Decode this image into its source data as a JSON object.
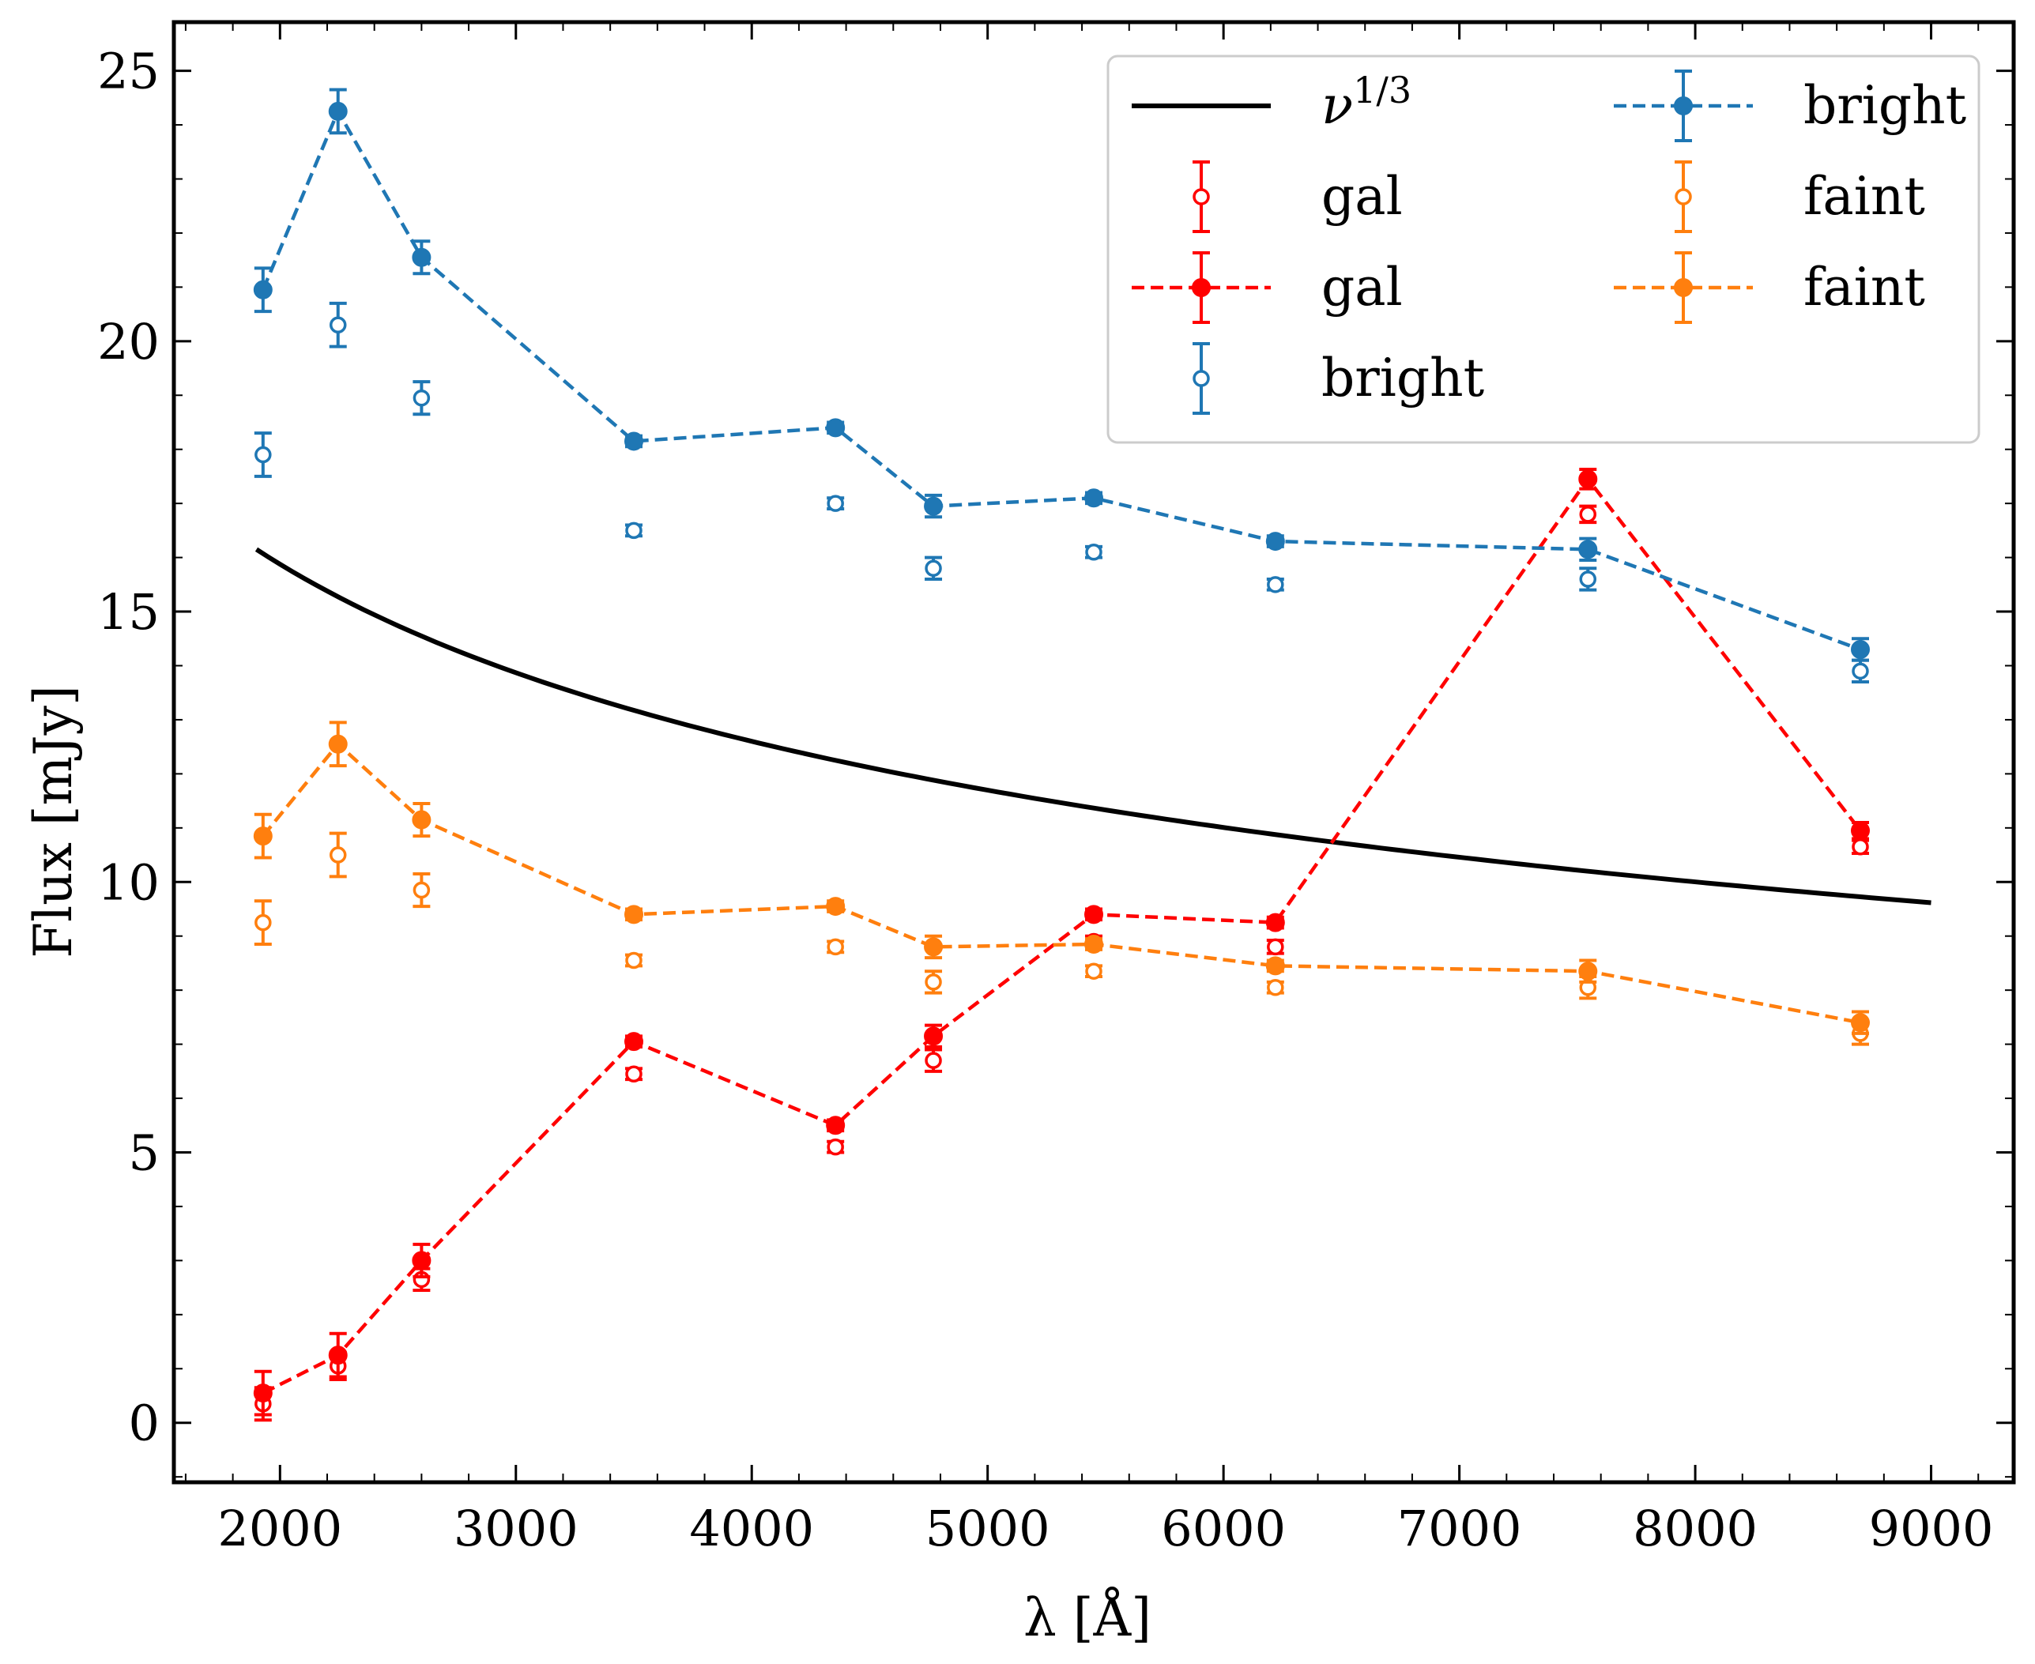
{
  "chart_data": {
    "type": "line",
    "title": "",
    "xlabel": "λ [Å]",
    "ylabel": "Flux [mJy]",
    "xlim": [
      1550,
      9350
    ],
    "ylim": [
      -1.1,
      25.9
    ],
    "xticks": [
      2000,
      3000,
      4000,
      5000,
      6000,
      7000,
      8000,
      9000
    ],
    "yticks": [
      0,
      5,
      10,
      15,
      20,
      25
    ],
    "x_minor_step": 200,
    "y_minor_step": 1,
    "legend_location": "top-right",
    "legend_columns": 2,
    "colors": {
      "gal": "#ff0000",
      "bright": "#1f77b4",
      "faint": "#ff7f0e",
      "model": "#000000"
    },
    "model_curve": {
      "name": "ν^1/3",
      "label_base": "ν",
      "label_exp": "1/3",
      "x_start": 1900,
      "x_end": 9000,
      "anchor_x": 1900,
      "anchor_y": 16.15,
      "exponent": -0.3333
    },
    "series": [
      {
        "name": "gal",
        "style": "open",
        "color_key": "gal",
        "x": [
          1928,
          2246,
          2600,
          3500,
          4355,
          4770,
          5450,
          6220,
          7545,
          8700
        ],
        "y": [
          0.35,
          1.05,
          2.65,
          6.45,
          5.1,
          6.7,
          8.9,
          8.8,
          16.8,
          10.65
        ],
        "yerr": [
          0.3,
          0.25,
          0.2,
          0.1,
          0.1,
          0.2,
          0.1,
          0.12,
          0.15,
          0.12
        ]
      },
      {
        "name": "gal",
        "style": "filled",
        "color_key": "gal",
        "x": [
          1928,
          2246,
          2600,
          3500,
          4355,
          4770,
          5450,
          6220,
          7545,
          8700
        ],
        "y": [
          0.55,
          1.25,
          3.0,
          7.05,
          5.5,
          7.15,
          9.4,
          9.25,
          17.45,
          10.95
        ],
        "yerr": [
          0.4,
          0.4,
          0.3,
          0.1,
          0.1,
          0.2,
          0.1,
          0.1,
          0.18,
          0.15
        ]
      },
      {
        "name": "bright",
        "style": "open",
        "color_key": "bright",
        "x": [
          1928,
          2246,
          2600,
          3500,
          4355,
          4770,
          5450,
          6220,
          7545,
          8700
        ],
        "y": [
          17.9,
          20.3,
          18.95,
          16.5,
          17.0,
          15.8,
          16.1,
          15.5,
          15.6,
          13.9
        ],
        "yerr": [
          0.4,
          0.4,
          0.3,
          0.1,
          0.1,
          0.2,
          0.1,
          0.1,
          0.2,
          0.2
        ]
      },
      {
        "name": "bright",
        "style": "filled",
        "color_key": "bright",
        "x": [
          1928,
          2246,
          2600,
          3500,
          4355,
          4770,
          5450,
          6220,
          7545,
          8700
        ],
        "y": [
          20.95,
          24.25,
          21.55,
          18.15,
          18.4,
          16.95,
          17.1,
          16.3,
          16.15,
          14.3
        ],
        "yerr": [
          0.4,
          0.4,
          0.3,
          0.1,
          0.1,
          0.2,
          0.1,
          0.1,
          0.2,
          0.2
        ]
      },
      {
        "name": "faint",
        "style": "open",
        "color_key": "faint",
        "x": [
          1928,
          2246,
          2600,
          3500,
          4355,
          4770,
          5450,
          6220,
          7545,
          8700
        ],
        "y": [
          9.25,
          10.5,
          9.85,
          8.55,
          8.8,
          8.15,
          8.35,
          8.05,
          8.05,
          7.2
        ],
        "yerr": [
          0.4,
          0.4,
          0.3,
          0.1,
          0.1,
          0.2,
          0.1,
          0.1,
          0.2,
          0.2
        ]
      },
      {
        "name": "faint",
        "style": "filled",
        "color_key": "faint",
        "x": [
          1928,
          2246,
          2600,
          3500,
          4355,
          4770,
          5450,
          6220,
          7545,
          8700
        ],
        "y": [
          10.85,
          12.55,
          11.15,
          9.4,
          9.55,
          8.8,
          8.85,
          8.45,
          8.35,
          7.4
        ],
        "yerr": [
          0.4,
          0.4,
          0.3,
          0.1,
          0.1,
          0.2,
          0.1,
          0.1,
          0.2,
          0.2
        ]
      }
    ],
    "legend": [
      {
        "label": "ν^1/3",
        "kind": "line",
        "color_key": "model"
      },
      {
        "label": "gal",
        "kind": "open",
        "color_key": "gal"
      },
      {
        "label": "gal",
        "kind": "filled",
        "color_key": "gal"
      },
      {
        "label": "bright",
        "kind": "open",
        "color_key": "bright"
      },
      {
        "label": "bright",
        "kind": "filled",
        "color_key": "bright"
      },
      {
        "label": "faint",
        "kind": "open",
        "color_key": "faint"
      },
      {
        "label": "faint",
        "kind": "filled",
        "color_key": "faint"
      }
    ]
  }
}
